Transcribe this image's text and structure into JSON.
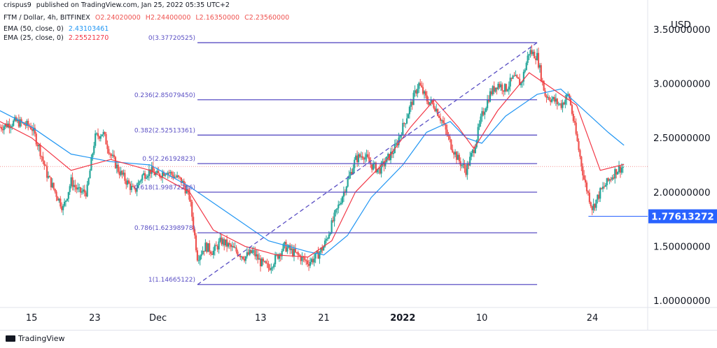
{
  "header": {
    "author": "crispus9",
    "published": "published on TradingView.com, Jan 25, 2022 05:35 UTC+2",
    "symbol": "FTM / Dollar, 4h, BITFINEX",
    "open": "O2.24020000",
    "high": "H2.24400000",
    "low": "L2.16350000",
    "close": "C2.23560000",
    "ema50_label": "EMA (50, close, 0)",
    "ema50_value": "2.43103461",
    "ema25_label": "EMA (25, close, 0)",
    "ema25_value": "2.25521270"
  },
  "footer": {
    "brand": "TradingView"
  },
  "colors": {
    "up": "#26a69a",
    "down": "#ef5350",
    "ema50": "#2196f3",
    "ema25": "#f23645",
    "fib": "#5a4fc4",
    "price_tag": "#2962ff"
  },
  "chart_data": {
    "type": "candlestick",
    "currency": "USD",
    "price_tag": "1.77613272",
    "ylim": [
      0.9,
      3.6
    ],
    "y_ticks": [
      "3.50000000",
      "3.00000000",
      "2.50000000",
      "2.00000000",
      "1.50000000",
      "1.00000000"
    ],
    "y_tick_values": [
      3.5,
      3.0,
      2.5,
      2.0,
      1.5,
      1.0
    ],
    "x_ticks": [
      {
        "label": "15",
        "day": 15
      },
      {
        "label": "23",
        "day": 23
      },
      {
        "label": "Dec",
        "day": 31
      },
      {
        "label": "13",
        "day": 44
      },
      {
        "label": "21",
        "day": 52
      },
      {
        "label": "2022",
        "day": 62
      },
      {
        "label": "10",
        "day": 72
      },
      {
        "label": "24",
        "day": 86
      }
    ],
    "x_range_days": [
      11,
      93
    ],
    "fib_levels": [
      {
        "label": "0(3.37720525)",
        "value": 3.37720525
      },
      {
        "label": "0.236(2.85079450)",
        "value": 2.8507945
      },
      {
        "label": "0.382(2.52513361)",
        "value": 2.52513361
      },
      {
        "label": "0.5(2.26192823)",
        "value": 2.26192823
      },
      {
        "label": "0.618(1.99872286)",
        "value": 1.99872286
      },
      {
        "label": "0.786(1.62398978)",
        "value": 1.62398978
      },
      {
        "label": "1(1.14665122)",
        "value": 1.14665122
      }
    ],
    "fib_span_days": [
      36,
      79
    ],
    "trend_line": {
      "from": {
        "day": 36,
        "price": 1.14665122
      },
      "to": {
        "day": 79,
        "price": 3.37720525
      }
    },
    "support_level": 1.77613272,
    "close_price": 2.2356,
    "price_path": [
      [
        11,
        2.6
      ],
      [
        13,
        2.65
      ],
      [
        15,
        2.6
      ],
      [
        16,
        2.4
      ],
      [
        17,
        2.15
      ],
      [
        18,
        2.0
      ],
      [
        19,
        1.85
      ],
      [
        20,
        2.1
      ],
      [
        21,
        2.0
      ],
      [
        22,
        2.0
      ],
      [
        23,
        2.5
      ],
      [
        24,
        2.55
      ],
      [
        25,
        2.35
      ],
      [
        26,
        2.2
      ],
      [
        27,
        2.1
      ],
      [
        28,
        2.0
      ],
      [
        29,
        2.15
      ],
      [
        30,
        2.2
      ],
      [
        31,
        2.15
      ],
      [
        32,
        2.2
      ],
      [
        33,
        2.15
      ],
      [
        34,
        2.1
      ],
      [
        35,
        1.95
      ],
      [
        36,
        1.4
      ],
      [
        37,
        1.5
      ],
      [
        38,
        1.45
      ],
      [
        39,
        1.55
      ],
      [
        40,
        1.5
      ],
      [
        41,
        1.45
      ],
      [
        42,
        1.4
      ],
      [
        43,
        1.45
      ],
      [
        44,
        1.35
      ],
      [
        45,
        1.3
      ],
      [
        46,
        1.4
      ],
      [
        47,
        1.5
      ],
      [
        48,
        1.45
      ],
      [
        49,
        1.4
      ],
      [
        50,
        1.35
      ],
      [
        51,
        1.4
      ],
      [
        52,
        1.5
      ],
      [
        53,
        1.7
      ],
      [
        54,
        1.9
      ],
      [
        55,
        2.1
      ],
      [
        56,
        2.3
      ],
      [
        57,
        2.35
      ],
      [
        58,
        2.25
      ],
      [
        59,
        2.2
      ],
      [
        60,
        2.3
      ],
      [
        61,
        2.4
      ],
      [
        62,
        2.6
      ],
      [
        63,
        2.8
      ],
      [
        64,
        3.0
      ],
      [
        65,
        2.85
      ],
      [
        66,
        2.8
      ],
      [
        67,
        2.65
      ],
      [
        68,
        2.45
      ],
      [
        69,
        2.3
      ],
      [
        70,
        2.2
      ],
      [
        71,
        2.4
      ],
      [
        72,
        2.7
      ],
      [
        73,
        2.9
      ],
      [
        74,
        3.0
      ],
      [
        75,
        2.95
      ],
      [
        76,
        3.05
      ],
      [
        77,
        3.0
      ],
      [
        78,
        3.3
      ],
      [
        79,
        3.25
      ],
      [
        80,
        2.9
      ],
      [
        81,
        2.85
      ],
      [
        82,
        2.8
      ],
      [
        83,
        2.9
      ],
      [
        84,
        2.5
      ],
      [
        85,
        2.1
      ],
      [
        86,
        1.85
      ],
      [
        87,
        2.0
      ],
      [
        88,
        2.1
      ],
      [
        89,
        2.2
      ],
      [
        90,
        2.2356
      ]
    ],
    "ema50_path": [
      [
        11,
        2.75
      ],
      [
        15,
        2.6
      ],
      [
        20,
        2.35
      ],
      [
        25,
        2.28
      ],
      [
        30,
        2.25
      ],
      [
        35,
        2.05
      ],
      [
        40,
        1.8
      ],
      [
        45,
        1.55
      ],
      [
        50,
        1.45
      ],
      [
        52,
        1.42
      ],
      [
        55,
        1.6
      ],
      [
        58,
        1.95
      ],
      [
        62,
        2.25
      ],
      [
        65,
        2.55
      ],
      [
        68,
        2.65
      ],
      [
        70,
        2.5
      ],
      [
        72,
        2.45
      ],
      [
        75,
        2.7
      ],
      [
        79,
        2.9
      ],
      [
        82,
        2.95
      ],
      [
        85,
        2.75
      ],
      [
        88,
        2.55
      ],
      [
        90,
        2.431
      ]
    ],
    "ema25_path": [
      [
        11,
        2.65
      ],
      [
        15,
        2.5
      ],
      [
        20,
        2.2
      ],
      [
        25,
        2.3
      ],
      [
        30,
        2.2
      ],
      [
        35,
        2.0
      ],
      [
        38,
        1.65
      ],
      [
        42,
        1.5
      ],
      [
        46,
        1.42
      ],
      [
        50,
        1.4
      ],
      [
        53,
        1.55
      ],
      [
        56,
        2.0
      ],
      [
        60,
        2.3
      ],
      [
        63,
        2.6
      ],
      [
        66,
        2.85
      ],
      [
        69,
        2.6
      ],
      [
        71,
        2.4
      ],
      [
        74,
        2.75
      ],
      [
        78,
        3.1
      ],
      [
        81,
        2.95
      ],
      [
        84,
        2.8
      ],
      [
        87,
        2.2
      ],
      [
        90,
        2.255
      ]
    ]
  }
}
